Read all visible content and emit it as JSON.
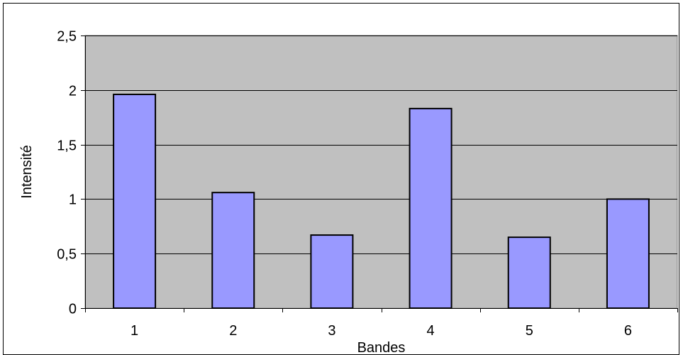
{
  "chart_data": {
    "type": "bar",
    "categories": [
      "1",
      "2",
      "3",
      "4",
      "5",
      "6"
    ],
    "values": [
      1.96,
      1.06,
      0.67,
      1.83,
      0.65,
      1.0
    ],
    "title": "",
    "xlabel": "Bandes",
    "ylabel": "Intensité",
    "ylim": [
      0,
      2.5
    ],
    "yticks": [
      "0",
      "0,5",
      "1",
      "1,5",
      "2",
      "2,5"
    ],
    "ytick_values": [
      0,
      0.5,
      1,
      1.5,
      2,
      2.5
    ],
    "grid": true,
    "legend": "none",
    "colors": {
      "bar_fill": "#9999FF",
      "bar_stroke": "#000000",
      "plot_background": "#C0C0C0",
      "gridline": "#000000"
    }
  }
}
